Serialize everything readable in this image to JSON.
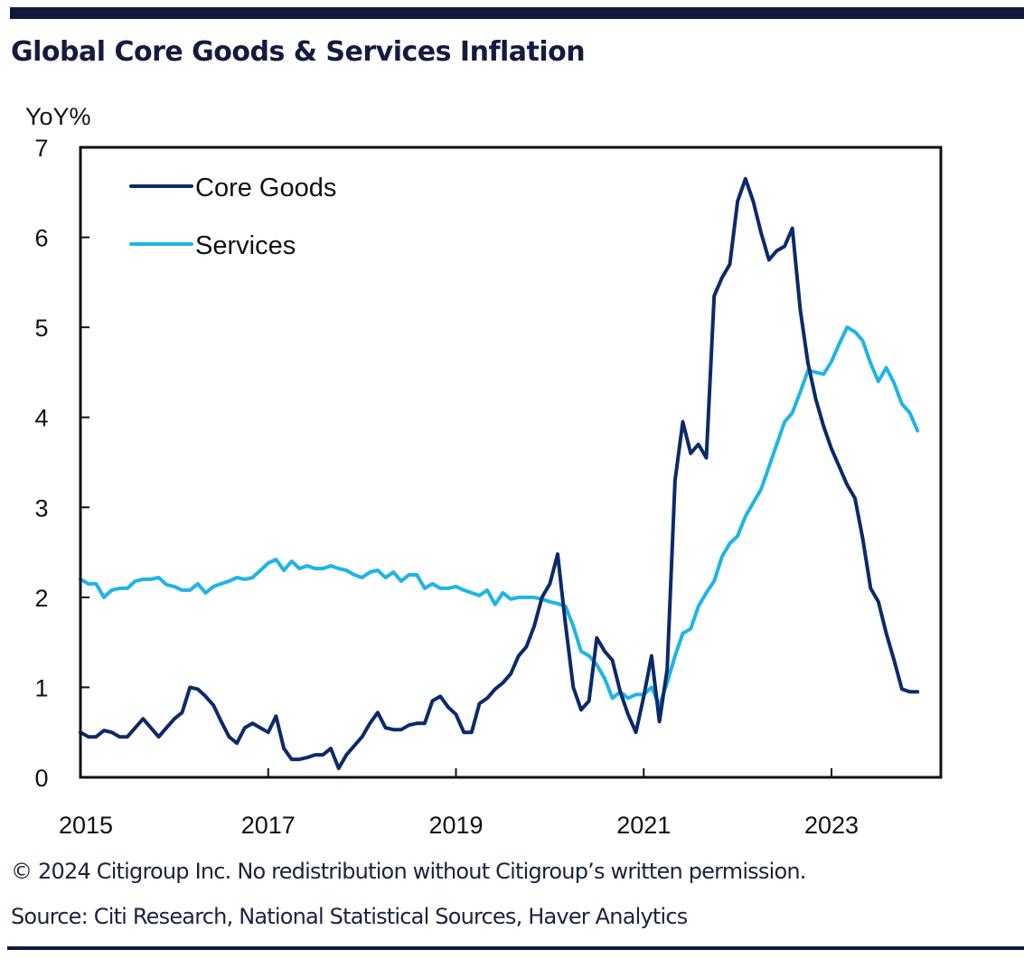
{
  "header": {
    "title": "Global Core Goods & Services Inflation"
  },
  "footer": {
    "copyright": "© 2024 Citigroup Inc. No redistribution without Citigroup’s written permission.",
    "source": "Source: Citi Research, National Statistical Sources, Haver Analytics"
  },
  "colors": {
    "core_goods": "#0b2a6b",
    "services": "#1fb4e6",
    "frame": "#111111",
    "brand_bar": "#0f1a3a"
  },
  "chart_data": {
    "type": "line",
    "title": "Global Core Goods & Services Inflation",
    "xlabel": "",
    "ylabel": "YoY%",
    "ylim": [
      0,
      7
    ],
    "yticks": [
      0,
      1,
      2,
      3,
      4,
      5,
      6,
      7
    ],
    "ytick_labels": [
      "0",
      "1",
      "2",
      "3",
      "4",
      "5",
      "6",
      "7"
    ],
    "x_start": "2015-01",
    "x_end": "2023-12",
    "x_frequency": "monthly",
    "xtick_labels": [
      "2015",
      "2017",
      "2019",
      "2021",
      "2023"
    ],
    "xtick_years": [
      2015,
      2017,
      2019,
      2021,
      2023
    ],
    "grid": false,
    "legend_position": "top-left",
    "series": [
      {
        "name": "Core Goods",
        "color": "#0b2a6b",
        "values": [
          0.5,
          0.45,
          0.45,
          0.52,
          0.5,
          0.45,
          0.45,
          0.55,
          0.65,
          0.55,
          0.45,
          0.55,
          0.65,
          0.72,
          1.0,
          0.98,
          0.9,
          0.8,
          0.62,
          0.45,
          0.38,
          0.55,
          0.6,
          0.55,
          0.5,
          0.68,
          0.32,
          0.2,
          0.2,
          0.22,
          0.25,
          0.25,
          0.32,
          0.1,
          0.25,
          0.35,
          0.45,
          0.6,
          0.72,
          0.55,
          0.53,
          0.53,
          0.58,
          0.6,
          0.6,
          0.85,
          0.9,
          0.78,
          0.7,
          0.5,
          0.5,
          0.82,
          0.88,
          0.98,
          1.05,
          1.15,
          1.35,
          1.45,
          1.68,
          2.0,
          2.15,
          2.48,
          1.7,
          1.0,
          0.75,
          0.85,
          1.55,
          1.4,
          1.3,
          0.95,
          0.7,
          0.5,
          0.9,
          1.35,
          0.62,
          1.2,
          3.3,
          3.95,
          3.6,
          3.7,
          3.55,
          5.35,
          5.55,
          5.7,
          6.4,
          6.65,
          6.4,
          6.05,
          5.75,
          5.85,
          5.9,
          6.1,
          5.2,
          4.6,
          4.2,
          3.9,
          3.65,
          3.45,
          3.25,
          3.1,
          2.65,
          2.1,
          1.95,
          1.6,
          1.3,
          0.98,
          0.95,
          0.95
        ]
      },
      {
        "name": "Services",
        "color": "#1fb4e6",
        "values": [
          2.2,
          2.15,
          2.15,
          2.0,
          2.08,
          2.1,
          2.1,
          2.18,
          2.2,
          2.2,
          2.22,
          2.14,
          2.12,
          2.08,
          2.08,
          2.15,
          2.05,
          2.12,
          2.15,
          2.18,
          2.22,
          2.2,
          2.22,
          2.3,
          2.38,
          2.42,
          2.3,
          2.4,
          2.32,
          2.35,
          2.32,
          2.32,
          2.35,
          2.32,
          2.3,
          2.25,
          2.22,
          2.28,
          2.3,
          2.22,
          2.28,
          2.18,
          2.25,
          2.25,
          2.1,
          2.15,
          2.1,
          2.1,
          2.12,
          2.08,
          2.05,
          2.02,
          2.08,
          1.92,
          2.05,
          1.98,
          2.0,
          2.0,
          2.0,
          1.98,
          1.95,
          1.93,
          1.9,
          1.68,
          1.4,
          1.35,
          1.25,
          1.1,
          0.88,
          0.95,
          0.88,
          0.92,
          0.92,
          1.0,
          0.8,
          1.05,
          1.35,
          1.6,
          1.65,
          1.9,
          2.05,
          2.18,
          2.45,
          2.6,
          2.68,
          2.9,
          3.05,
          3.2,
          3.45,
          3.7,
          3.95,
          4.05,
          4.28,
          4.52,
          4.5,
          4.48,
          4.62,
          4.82,
          5.0,
          4.95,
          4.85,
          4.6,
          4.4,
          4.55,
          4.38,
          4.15,
          4.05,
          3.85
        ]
      }
    ]
  }
}
